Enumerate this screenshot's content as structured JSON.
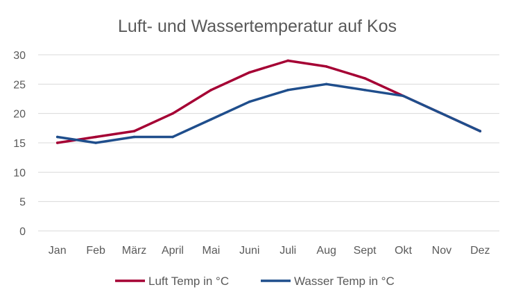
{
  "chart_data": {
    "type": "line",
    "title": "Luft- und Wassertemperatur auf Kos",
    "categories": [
      "Jan",
      "Feb",
      "März",
      "April",
      "Mai",
      "Juni",
      "Juli",
      "Aug",
      "Sept",
      "Okt",
      "Nov",
      "Dez"
    ],
    "ylim": [
      0,
      30
    ],
    "yticks": [
      "0",
      "5",
      "10",
      "15",
      "20",
      "25",
      "30"
    ],
    "grid": true,
    "legend_position": "bottom",
    "series": [
      {
        "name": "Luft Temp in °C",
        "color": "#a50034",
        "values": [
          15,
          16,
          17,
          20,
          24,
          27,
          29,
          28,
          26,
          23,
          20,
          17
        ]
      },
      {
        "name": "Wasser Temp in °C",
        "color": "#1f4e8c",
        "values": [
          16,
          15,
          16,
          16,
          19,
          22,
          24,
          25,
          24,
          23,
          20,
          17
        ]
      }
    ]
  }
}
